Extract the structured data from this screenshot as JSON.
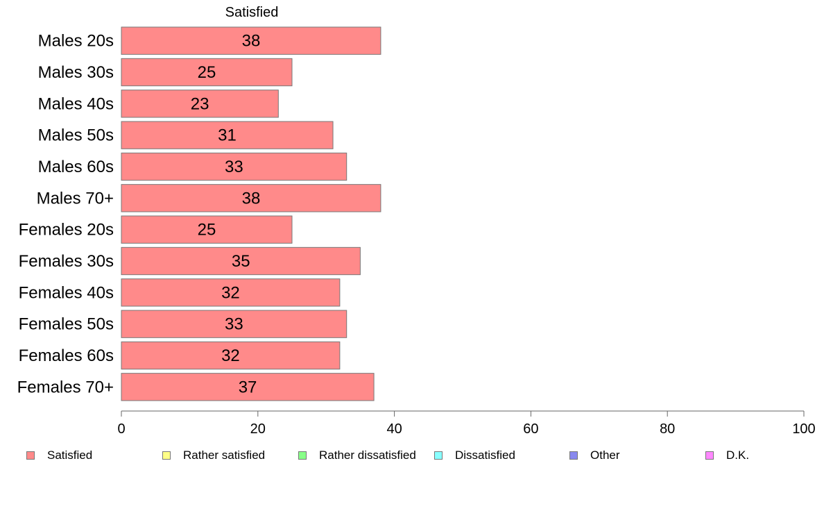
{
  "chart_data": {
    "type": "bar",
    "orientation": "horizontal",
    "stacked": true,
    "categories": [
      "Males 20s",
      "Males 30s",
      "Males 40s",
      "Males 50s",
      "Males 60s",
      "Males 70+",
      "Females 20s",
      "Females 30s",
      "Females 40s",
      "Females 50s",
      "Females 60s",
      "Females 70+"
    ],
    "series": [
      {
        "name": "Satisfied",
        "color": "#ff8a8a",
        "values": [
          38,
          25,
          23,
          31,
          33,
          38,
          25,
          35,
          32,
          33,
          32,
          37
        ]
      }
    ],
    "series_title": "Satisfied",
    "xlim": [
      0,
      100
    ],
    "xticks": [
      0,
      20,
      40,
      60,
      80,
      100
    ],
    "grid": false,
    "legend_position": "bottom",
    "legend": [
      {
        "name": "Satisfied",
        "color": "#ff8a8a"
      },
      {
        "name": "Rather satisfied",
        "color": "#ffff88"
      },
      {
        "name": "Rather dissatisfied",
        "color": "#88ff88"
      },
      {
        "name": "Dissatisfied",
        "color": "#88ffff"
      },
      {
        "name": "Other",
        "color": "#8888ee"
      },
      {
        "name": "D.K.",
        "color": "#ff88ff"
      }
    ]
  }
}
